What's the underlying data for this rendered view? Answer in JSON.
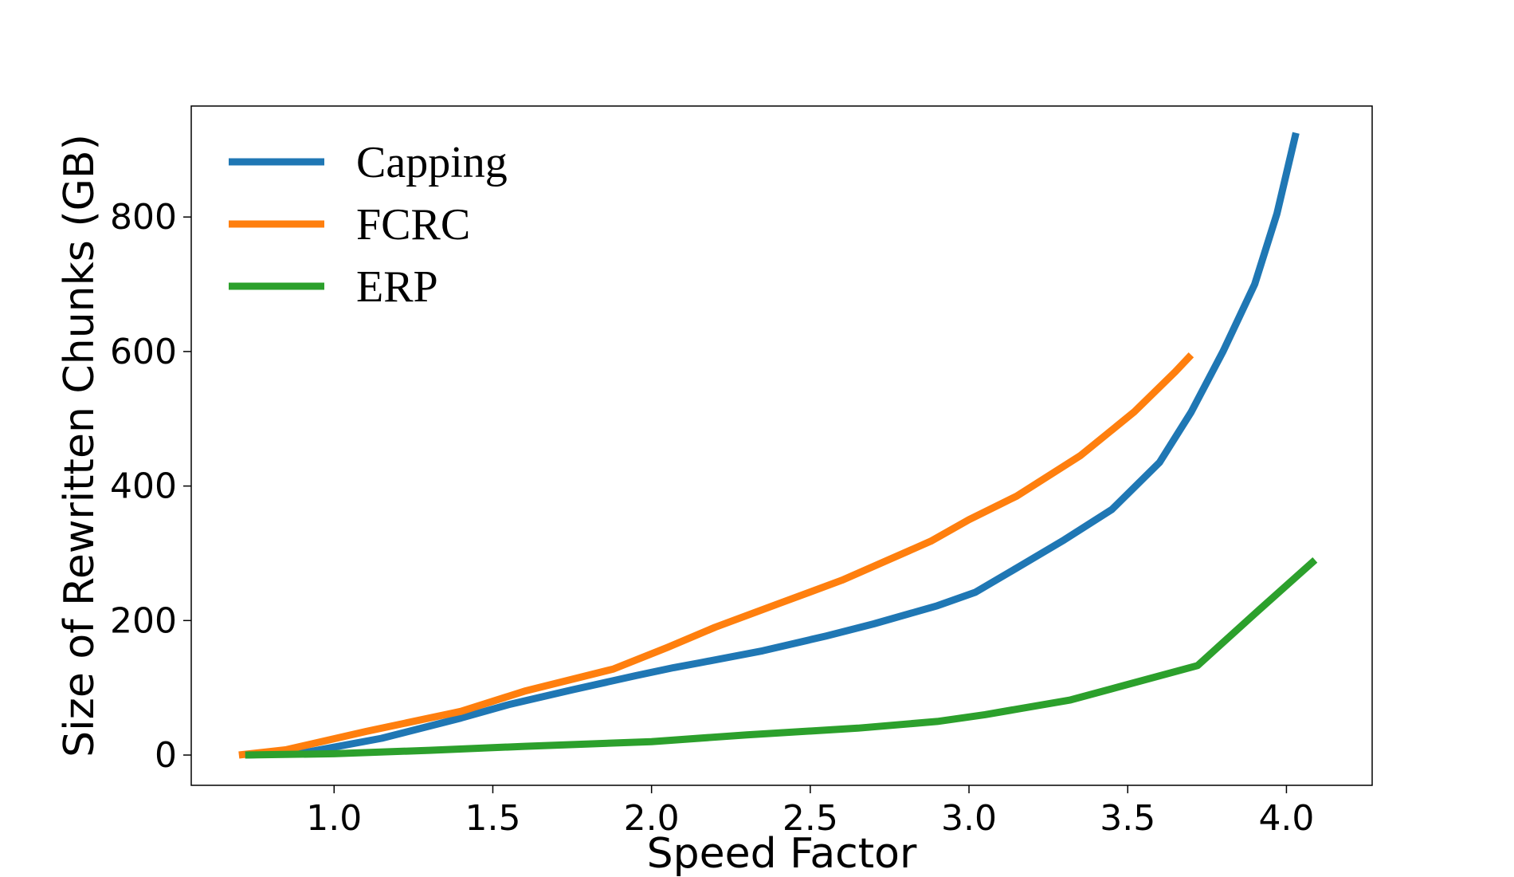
{
  "chart_data": {
    "type": "line",
    "title": "",
    "xlabel": "Speed Factor",
    "ylabel": "Size of Rewritten Chunks (GB)",
    "xlim": [
      0.55,
      4.27
    ],
    "ylim": [
      -45,
      965
    ],
    "xticks": [
      "1.0",
      "1.5",
      "2.0",
      "2.5",
      "3.0",
      "3.5",
      "4.0"
    ],
    "xtick_values": [
      1.0,
      1.5,
      2.0,
      2.5,
      3.0,
      3.5,
      4.0
    ],
    "yticks": [
      "0",
      "200",
      "400",
      "600",
      "800"
    ],
    "ytick_values": [
      0,
      200,
      400,
      600,
      800
    ],
    "grid": false,
    "legend_position": "top-left",
    "series": [
      {
        "name": "Capping",
        "color": "#1f77b4",
        "x": [
          0.72,
          0.9,
          1.15,
          1.4,
          1.55,
          1.75,
          1.95,
          2.07,
          2.15,
          2.35,
          2.55,
          2.7,
          2.9,
          3.02,
          3.15,
          3.3,
          3.45,
          3.6,
          3.7,
          3.8,
          3.9,
          3.97,
          4.03
        ],
        "y": [
          0,
          3,
          25,
          55,
          75,
          97,
          118,
          130,
          137,
          155,
          177,
          195,
          222,
          242,
          278,
          320,
          365,
          435,
          510,
          600,
          700,
          805,
          925
        ]
      },
      {
        "name": "FCRC",
        "color": "#ff7f0e",
        "x": [
          0.7,
          0.85,
          1.1,
          1.4,
          1.6,
          1.88,
          2.05,
          2.2,
          2.4,
          2.6,
          2.88,
          3.0,
          3.15,
          3.35,
          3.52,
          3.65,
          3.7
        ],
        "y": [
          0,
          8,
          35,
          65,
          95,
          128,
          160,
          190,
          225,
          260,
          318,
          350,
          385,
          445,
          510,
          570,
          595
        ]
      },
      {
        "name": "ERP",
        "color": "#2ca02c",
        "x": [
          0.72,
          1.0,
          1.3,
          1.6,
          2.0,
          2.3,
          2.65,
          2.9,
          3.05,
          3.32,
          3.5,
          3.72,
          3.9,
          4.09
        ],
        "y": [
          0,
          2,
          7,
          13,
          20,
          30,
          40,
          50,
          60,
          82,
          105,
          133,
          210,
          290
        ]
      }
    ]
  }
}
